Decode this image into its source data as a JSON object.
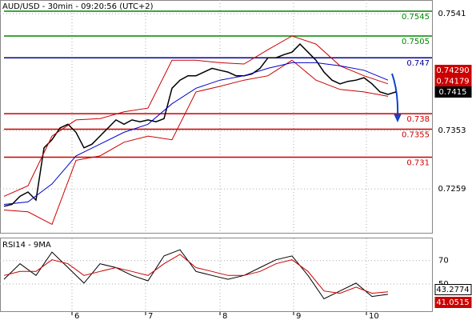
{
  "chart_data": [
    {
      "type": "line",
      "title": "AUD/USD - 30min - 09:20:56 (UTC+2)",
      "x": [
        0,
        1,
        2,
        3,
        4,
        5,
        6,
        7,
        8,
        9,
        10,
        11,
        12,
        13,
        14,
        15,
        16,
        17,
        18,
        19,
        20,
        21,
        22,
        23,
        24,
        25,
        26,
        27,
        28,
        29,
        30,
        31,
        32,
        33,
        34,
        35,
        36,
        37,
        38,
        39,
        40,
        41,
        42,
        43,
        44,
        45,
        46,
        47,
        48,
        49
      ],
      "xlim": [
        -0.5,
        53.5
      ],
      "xticks": [
        {
          "value": 8.5,
          "label": "6"
        },
        {
          "value": 17.7,
          "label": "7"
        },
        {
          "value": 27,
          "label": "8"
        },
        {
          "value": 36.2,
          "label": "9"
        },
        {
          "value": 45.3,
          "label": "10"
        }
      ],
      "ylim": [
        0.7187,
        0.7563
      ],
      "yticks": [
        0.7541,
        0.7353,
        0.7259
      ],
      "grid": true,
      "series": [
        {
          "color": "#000000",
          "values": [
            0.7231,
            0.7234,
            0.7247,
            0.7254,
            0.7241,
            0.7325,
            0.7338,
            0.7357,
            0.7363,
            0.735,
            0.7325,
            0.7331,
            0.7344,
            0.7357,
            0.737,
            0.7363,
            0.737,
            0.7367,
            0.737,
            0.7367,
            0.7372,
            0.7421,
            0.7434,
            0.7441,
            0.7441,
            0.7447,
            0.7453,
            0.745,
            0.7447,
            0.7441,
            0.7441,
            0.7444,
            0.7453,
            0.747,
            0.747,
            0.7475,
            0.7479,
            0.7492,
            0.7479,
            0.7466,
            0.7447,
            0.7434,
            0.7428,
            0.7432,
            0.7434,
            0.7438,
            0.7428,
            0.7415,
            0.7411,
            0.7415
          ]
        },
        {
          "color": "#cc0000",
          "x": [
            0,
            3,
            6,
            9,
            12,
            15,
            18,
            21,
            24,
            27,
            30,
            33,
            36,
            39,
            42,
            45,
            48
          ],
          "values": [
            0.7247,
            0.7264,
            0.7344,
            0.737,
            0.7372,
            0.7383,
            0.7389,
            0.7466,
            0.7466,
            0.7462,
            0.746,
            0.7483,
            0.7505,
            0.7492,
            0.7457,
            0.7441,
            0.7428
          ]
        },
        {
          "color": "#cc0000",
          "x": [
            0,
            3,
            6,
            9,
            12,
            15,
            18,
            21,
            24,
            27,
            30,
            33,
            36,
            39,
            42,
            45,
            48
          ],
          "values": [
            0.7225,
            0.7222,
            0.7202,
            0.7305,
            0.7312,
            0.7334,
            0.7344,
            0.7338,
            0.7415,
            0.7424,
            0.7434,
            0.7441,
            0.7466,
            0.7434,
            0.7419,
            0.7415,
            0.7408
          ]
        },
        {
          "color": "#0000cc",
          "x": [
            0,
            3,
            6,
            9,
            12,
            15,
            18,
            21,
            24,
            27,
            30,
            33,
            36,
            39,
            42,
            45,
            48
          ],
          "values": [
            0.7234,
            0.7238,
            0.7267,
            0.7312,
            0.7331,
            0.735,
            0.7363,
            0.7396,
            0.7421,
            0.7434,
            0.7441,
            0.7453,
            0.7462,
            0.7462,
            0.7457,
            0.745,
            0.7434
          ]
        }
      ],
      "levels": [
        {
          "value": 0.7545,
          "label": "0.7545",
          "color": "#008800"
        },
        {
          "value": 0.7505,
          "label": "0.7505",
          "color": "#008800"
        },
        {
          "value": 0.747,
          "label": "0.747",
          "color": "#000099"
        },
        {
          "value": 0.738,
          "label": "0.738",
          "color": "#cc0000"
        },
        {
          "value": 0.7355,
          "label": "0.7355",
          "color": "#cc0000"
        },
        {
          "value": 0.731,
          "label": "0.731",
          "color": "#cc0000"
        }
      ],
      "price_labels": [
        {
          "value": 0.7429,
          "label": "0.74290",
          "color": "#cc0000"
        },
        {
          "value": 0.74179,
          "label": "0.74179",
          "color": "#cc0000"
        },
        {
          "value": 0.7415,
          "label": "0.7415",
          "color": "#000000"
        }
      ]
    },
    {
      "type": "line",
      "title": "RSI14 - 9MA",
      "xlim": [
        -0.5,
        53.5
      ],
      "ylim": [
        26,
        89
      ],
      "yticks": [
        70,
        50
      ],
      "series": [
        {
          "color": "#000000",
          "x": [
            0,
            2,
            4,
            6,
            8,
            10,
            12,
            14,
            16,
            18,
            20,
            22,
            24,
            26,
            28,
            30,
            32,
            34,
            36,
            38,
            40,
            42,
            44,
            46,
            48
          ],
          "values": [
            54,
            67.3,
            57.3,
            77.3,
            64,
            50.7,
            67.3,
            64,
            57.3,
            52.7,
            74,
            79.3,
            60.7,
            57.3,
            54,
            57.3,
            64,
            70.7,
            74,
            57.3,
            37.3,
            44,
            50.7,
            39.3,
            41.1
          ]
        },
        {
          "color": "#cc0000",
          "x": [
            0,
            2,
            4,
            6,
            8,
            10,
            12,
            14,
            16,
            18,
            20,
            22,
            24,
            26,
            28,
            30,
            32,
            34,
            36,
            38,
            40,
            42,
            44,
            46,
            48
          ],
          "values": [
            57.3,
            60.7,
            60.7,
            70.7,
            67.3,
            57.3,
            60.7,
            64,
            60.7,
            57.3,
            67.3,
            75.3,
            64,
            60.7,
            57.3,
            57.3,
            60.7,
            67.3,
            70.7,
            60.7,
            44,
            42,
            47.3,
            42,
            43.3
          ]
        }
      ],
      "price_labels": [
        {
          "value": 43.2774,
          "label": "43.2774",
          "color": "#ffffff"
        },
        {
          "value": 41.0515,
          "label": "41.0515",
          "color": "#cc0000"
        }
      ]
    }
  ]
}
